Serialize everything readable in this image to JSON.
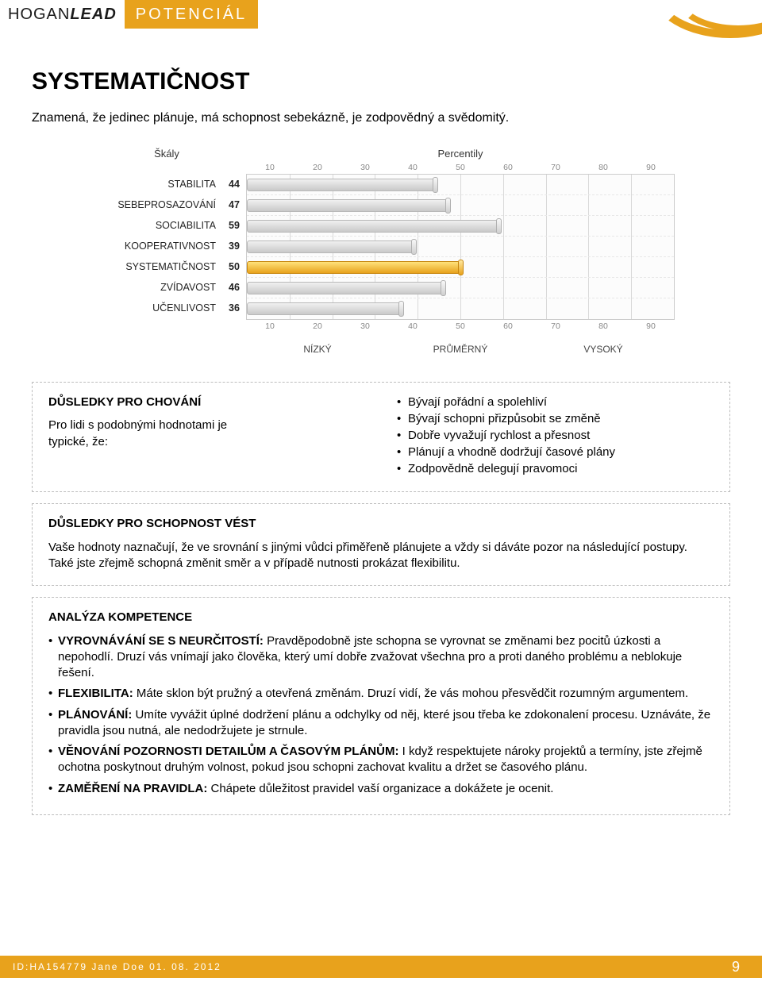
{
  "header": {
    "brand1": "HOGAN",
    "brand2": "LEAD",
    "subtitle": "POTENCIÁL"
  },
  "page": {
    "title": "SYSTEMATIČNOST",
    "lead": "Znamená, že jedinec plánuje, má schopnost sebekázně, je zodpovědný a svědomitý."
  },
  "chart": {
    "left_header": "Škály",
    "right_header": "Percentily",
    "ticks": [
      "10",
      "20",
      "30",
      "40",
      "50",
      "60",
      "70",
      "80",
      "90"
    ],
    "rows": [
      {
        "label": "STABILITA",
        "value": 44,
        "hl": false
      },
      {
        "label": "SEBEPROSAZOVÁNÍ",
        "value": 47,
        "hl": false
      },
      {
        "label": "SOCIABILITA",
        "value": 59,
        "hl": false
      },
      {
        "label": "KOOPERATIVNOST",
        "value": 39,
        "hl": false
      },
      {
        "label": "SYSTEMATIČNOST",
        "value": 50,
        "hl": true
      },
      {
        "label": "ZVÍDAVOST",
        "value": 46,
        "hl": false
      },
      {
        "label": "UČENLIVOST",
        "value": 36,
        "hl": false
      }
    ],
    "legend": {
      "low": "NÍZKÝ",
      "mid": "PRŮMĚRNÝ",
      "high": "VYSOKÝ"
    },
    "colors": {
      "bar_grey_top": "#f0f0f0",
      "bar_grey_bottom": "#c9c9c9",
      "bar_hl_top": "#ffe27a",
      "bar_hl_bottom": "#e8a21c",
      "grid_line": "#d9d9d9",
      "border": "#cccccc"
    }
  },
  "behavior": {
    "title": "DŮSLEDKY PRO CHOVÁNÍ",
    "intro1": "Pro lidi s podobnými hodnotami je",
    "intro2": "typické, že:",
    "bullets": [
      "Bývají pořádní a spolehliví",
      "Bývají schopni přizpůsobit se změně",
      "Dobře vyvažují rychlost a přesnost",
      "Plánují a vhodně dodržují časové plány",
      "Zodpovědně delegují pravomoci"
    ]
  },
  "leadership": {
    "title": "DŮSLEDKY PRO SCHOPNOST VÉST",
    "text": "Vaše hodnoty naznačují, že ve srovnání s jinými vůdci přiměřeně plánujete a vždy si dáváte pozor na následující postupy. Také jste zřejmě schopná změnit směr a v případě nutnosti prokázat flexibilitu."
  },
  "competence": {
    "title": "ANALÝZA KOMPETENCE",
    "items": [
      {
        "b": "VYROVNÁVÁNÍ SE S NEURČITOSTÍ:",
        "t": " Pravděpodobně jste schopna se vyrovnat se změnami bez pocitů úzkosti a nepohodlí. Druzí vás vnímají jako člověka, který umí dobře zvažovat všechna pro a proti daného problému a neblokuje řešení."
      },
      {
        "b": "FLEXIBILITA:",
        "t": " Máte sklon být pružný a otevřená změnám. Druzí vidí, že vás mohou přesvědčit rozumným argumentem."
      },
      {
        "b": "PLÁNOVÁNÍ:",
        "t": " Umíte vyvážit úplné dodržení plánu a odchylky od něj, které jsou třeba ke zdokonalení procesu. Uznáváte, že pravidla jsou nutná, ale nedodržujete je strnule."
      },
      {
        "b": "VĚNOVÁNÍ POZORNOSTI DETAILŮM A ČASOVÝM PLÁNŮM:",
        "t": " I když respektujete nároky projektů a termíny, jste zřejmě ochotna poskytnout druhým volnost, pokud jsou schopni zachovat kvalitu a držet se časového plánu."
      },
      {
        "b": "ZAMĚŘENÍ NA PRAVIDLA:",
        "t": " Chápete důležitost pravidel vaší organizace a dokážete je ocenit."
      }
    ]
  },
  "footer": {
    "id": "ID:HA154779 Jane Doe 01. 08. 2012",
    "page": "9"
  },
  "palette": {
    "accent": "#e8a21c",
    "text": "#000000",
    "muted": "#888888",
    "border_dashed": "#bdbdbd"
  }
}
